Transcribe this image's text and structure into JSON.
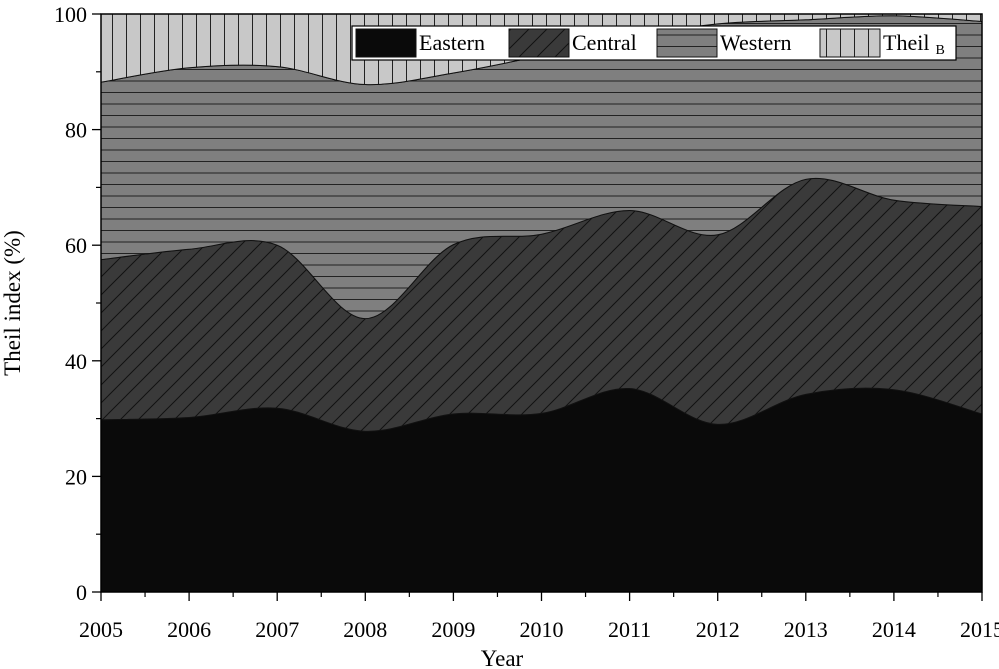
{
  "chart_data": {
    "type": "area",
    "stacked": true,
    "xlabel": "Year",
    "ylabel": "Theil index (%)",
    "ylim": [
      0,
      100
    ],
    "yticks": [
      0,
      20,
      40,
      60,
      80,
      100
    ],
    "x": [
      "2005",
      "2006",
      "2007",
      "2008",
      "2009",
      "2010",
      "2011",
      "2012",
      "2013",
      "2014",
      "2015"
    ],
    "series": [
      {
        "name": "Eastern",
        "values": [
          29.8,
          30.2,
          31.8,
          27.8,
          30.8,
          30.9,
          35.2,
          29.0,
          34.2,
          35.0,
          30.8
        ],
        "color": "#0a0a0a",
        "pattern": "solid"
      },
      {
        "name": "Central",
        "values": [
          27.7,
          29.1,
          28.2,
          19.5,
          29.3,
          31.0,
          30.8,
          32.8,
          37.2,
          32.8,
          35.9
        ],
        "color": "#3a3a3a",
        "pattern": "diagonal"
      },
      {
        "name": "Western",
        "values": [
          30.7,
          31.4,
          30.9,
          40.5,
          29.7,
          30.9,
          30.0,
          36.5,
          27.6,
          31.9,
          32.0
        ],
        "color": "#7f7f7f",
        "pattern": "horizontal"
      },
      {
        "name": "Theil",
        "subscript": "B",
        "values": [
          11.8,
          9.3,
          9.1,
          12.2,
          10.2,
          7.2,
          4.0,
          1.7,
          1.0,
          0.3,
          1.3
        ],
        "color": "#c8c8c8",
        "pattern": "vertical"
      }
    ],
    "legend_position": "top-right",
    "grid": false
  }
}
